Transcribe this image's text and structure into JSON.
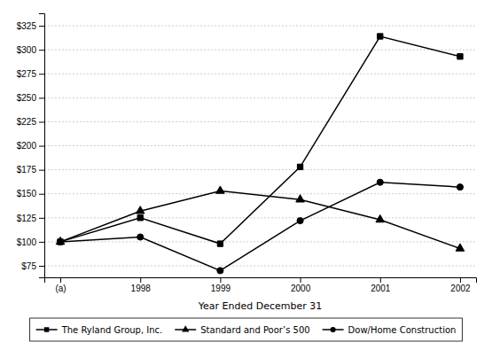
{
  "chart_data": {
    "type": "line",
    "xlabel": "Year Ended December 31",
    "categories": [
      "(a)",
      "1998",
      "1999",
      "2000",
      "2001",
      "2002"
    ],
    "series": [
      {
        "name": "The Ryland Group, Inc.",
        "color": "#000000",
        "marker": "square",
        "values": [
          100,
          125,
          98,
          178,
          314,
          293
        ]
      },
      {
        "name": "Standard and Poor’s 500",
        "color": "#000000",
        "marker": "triangle",
        "values": [
          100,
          132,
          153,
          144,
          123,
          93
        ]
      },
      {
        "name": "Dow/Home Construction",
        "color": "#000000",
        "marker": "circle",
        "values": [
          100,
          105,
          70,
          122,
          162,
          157
        ]
      }
    ],
    "ylim": [
      63,
      338
    ],
    "yticks": [
      {
        "value": 75,
        "label": "$75"
      },
      {
        "value": 100,
        "label": "$100"
      },
      {
        "value": 125,
        "label": "$125"
      },
      {
        "value": 150,
        "label": "$150"
      },
      {
        "value": 175,
        "label": "$175"
      },
      {
        "value": 200,
        "label": "$200"
      },
      {
        "value": 225,
        "label": "$225"
      },
      {
        "value": 250,
        "label": "$250"
      },
      {
        "value": 275,
        "label": "$275"
      },
      {
        "value": 300,
        "label": "$300"
      },
      {
        "value": 325,
        "label": "$325"
      }
    ],
    "grid": true,
    "legend": "bottom"
  }
}
